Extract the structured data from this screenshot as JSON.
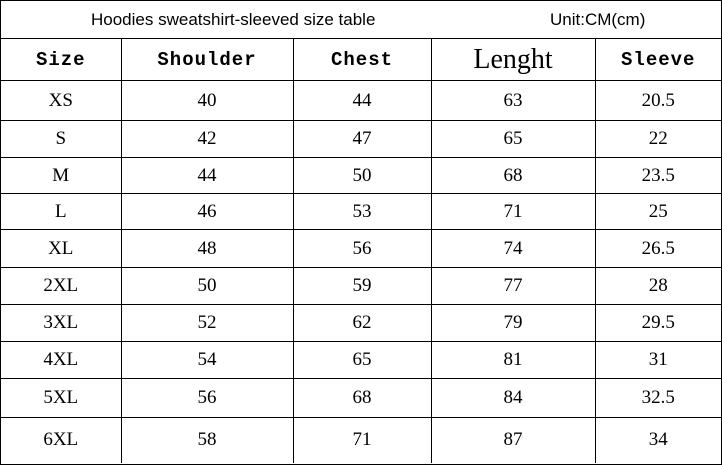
{
  "header": {
    "title": "Hoodies sweatshirt-sleeved size table",
    "unit": "Unit:CM(cm)"
  },
  "table": {
    "columns": [
      "Size",
      "Shoulder",
      "Chest",
      "Lenght",
      "Sleeve"
    ],
    "rows": [
      [
        "XS",
        "40",
        "44",
        "63",
        "20.5"
      ],
      [
        "S",
        "42",
        "47",
        "65",
        "22"
      ],
      [
        "M",
        "44",
        "50",
        "68",
        "23.5"
      ],
      [
        "L",
        "46",
        "53",
        "71",
        "25"
      ],
      [
        "XL",
        "48",
        "56",
        "74",
        "26.5"
      ],
      [
        "2XL",
        "50",
        "59",
        "77",
        "28"
      ],
      [
        "3XL",
        "52",
        "62",
        "79",
        "29.5"
      ],
      [
        "4XL",
        "54",
        "65",
        "81",
        "31"
      ],
      [
        "5XL",
        "56",
        "68",
        "84",
        "32.5"
      ],
      [
        "6XL",
        "58",
        "71",
        "87",
        "34"
      ]
    ]
  }
}
